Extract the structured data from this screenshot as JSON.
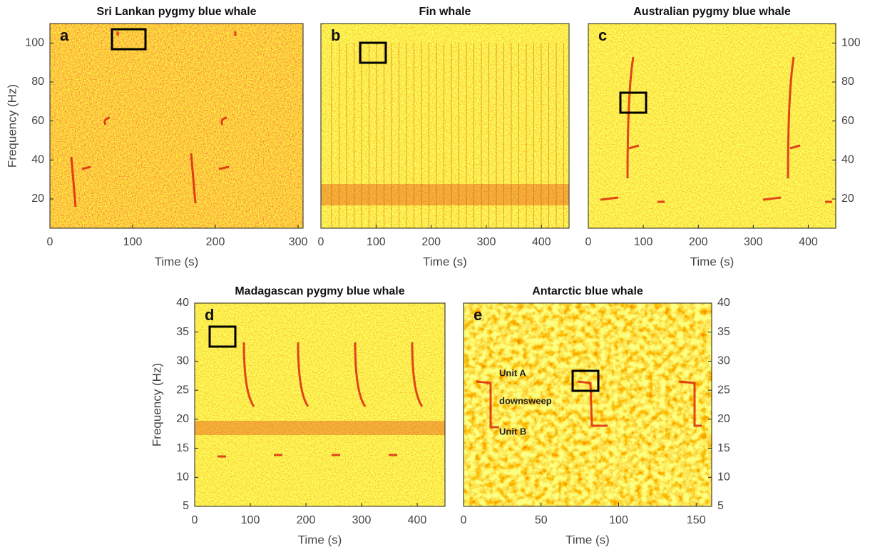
{
  "chart_data": [
    {
      "type": "spectrogram",
      "title": "Sri Lankan pygmy blue whale",
      "panel_label": "a",
      "xlabel": "Time (s)",
      "ylabel": "Frequency (Hz)",
      "y_axis_side": "left",
      "xlim": [
        0,
        306
      ],
      "ylim": [
        5,
        110
      ],
      "xticks": [
        0,
        100,
        200,
        300
      ],
      "yticks": [
        20,
        40,
        60,
        80,
        100
      ]
    },
    {
      "type": "spectrogram",
      "title": "Fin whale",
      "panel_label": "b",
      "xlabel": "Time (s)",
      "y_axis_side": "none",
      "xlim": [
        0,
        450
      ],
      "ylim": [
        5,
        110
      ],
      "xticks": [
        0,
        100,
        200,
        300,
        400
      ]
    },
    {
      "type": "spectrogram",
      "title": "Australian pygmy blue whale",
      "panel_label": "c",
      "xlabel": "Time (s)",
      "y_axis_side": "right",
      "xlim": [
        0,
        450
      ],
      "ylim": [
        5,
        110
      ],
      "xticks": [
        0,
        100,
        200,
        300,
        400
      ],
      "yticks": [
        20,
        40,
        60,
        80,
        100
      ]
    },
    {
      "type": "spectrogram",
      "title": "Madagascan pygmy blue whale",
      "panel_label": "d",
      "xlabel": "Time (s)",
      "ylabel": "Frequency (Hz)",
      "y_axis_side": "left",
      "xlim": [
        0,
        450
      ],
      "ylim": [
        5,
        40
      ],
      "xticks": [
        0,
        100,
        200,
        300,
        400
      ],
      "yticks": [
        5,
        10,
        15,
        20,
        25,
        30,
        35,
        40
      ]
    },
    {
      "type": "spectrogram",
      "title": "Antarctic blue whale",
      "panel_label": "e",
      "xlabel": "Time (s)",
      "y_axis_side": "right",
      "xlim": [
        0,
        160
      ],
      "ylim": [
        5,
        40
      ],
      "xticks": [
        0,
        50,
        100,
        150
      ],
      "yticks": [
        5,
        10,
        15,
        20,
        25,
        30,
        35,
        40
      ],
      "annotations": [
        "Unit A",
        "downsweep",
        "Unit B"
      ]
    }
  ]
}
